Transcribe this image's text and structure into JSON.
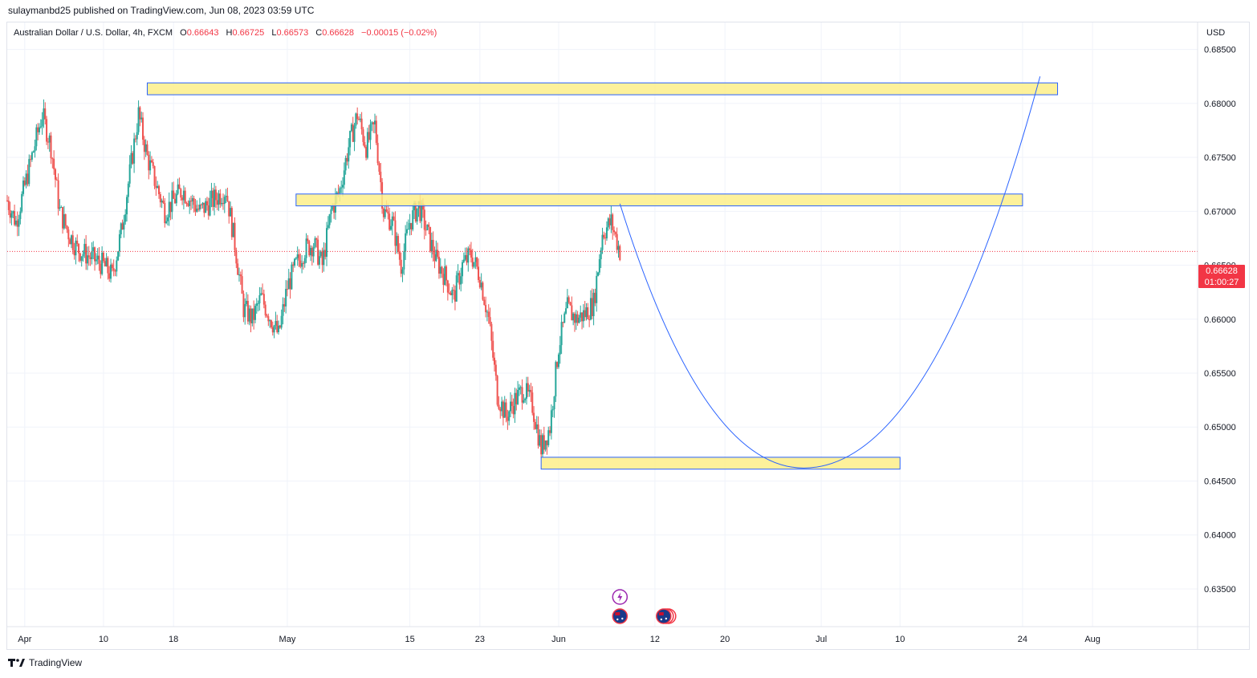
{
  "header": {
    "publisher_line": "sulaymanbd25 published on TradingView.com, Jun 08, 2023 03:59 UTC"
  },
  "legend": {
    "symbol": "Australian Dollar / U.S. Dollar, 4h, FXCM",
    "open_label": "O",
    "open_value": "0.66643",
    "high_label": "H",
    "high_value": "0.66725",
    "low_label": "L",
    "low_value": "0.66573",
    "close_label": "C",
    "close_value": "0.66628",
    "change": "−0.00015 (−0.02%)"
  },
  "price_axis": {
    "currency": "USD",
    "last_price": "0.66628",
    "countdown": "01:00:27"
  },
  "footer": {
    "brand": "TradingView"
  },
  "colors": {
    "up": "#26a69a",
    "down": "#ef5350",
    "zone_fill": "#fdef8a",
    "zone_border": "#2962ff",
    "curve": "#2962ff",
    "price_line": "#f23645",
    "grid": "#f0f3fa"
  },
  "chart_data": {
    "type": "candlestick",
    "interval": "4h",
    "ylim": [
      0.6315,
      0.6875
    ],
    "y_ticks": [
      "0.68500",
      "0.68000",
      "0.67500",
      "0.67000",
      "0.66500",
      "0.66000",
      "0.65500",
      "0.65000",
      "0.64500",
      "0.64000",
      "0.63500"
    ],
    "x_ticks": [
      {
        "label": "Apr",
        "date": "2023-04-01"
      },
      {
        "label": "10",
        "date": "2023-04-10"
      },
      {
        "label": "18",
        "date": "2023-04-18"
      },
      {
        "label": "May",
        "date": "2023-05-01"
      },
      {
        "label": "15",
        "date": "2023-05-15"
      },
      {
        "label": "23",
        "date": "2023-05-23"
      },
      {
        "label": "Jun",
        "date": "2023-06-01"
      },
      {
        "label": "12",
        "date": "2023-06-12"
      },
      {
        "label": "20",
        "date": "2023-06-20"
      },
      {
        "label": "Jul",
        "date": "2023-07-01"
      },
      {
        "label": "10",
        "date": "2023-07-10"
      },
      {
        "label": "24",
        "date": "2023-07-24"
      },
      {
        "label": "Aug",
        "date": "2023-08-01"
      }
    ],
    "closes": [
      {
        "date": "2023-03-30",
        "price": 0.671
      },
      {
        "date": "2023-03-31",
        "price": 0.669
      },
      {
        "date": "2023-04-03",
        "price": 0.679
      },
      {
        "date": "2023-04-04",
        "price": 0.676
      },
      {
        "date": "2023-04-05",
        "price": 0.67
      },
      {
        "date": "2023-04-06",
        "price": 0.668
      },
      {
        "date": "2023-04-07",
        "price": 0.6665
      },
      {
        "date": "2023-04-10",
        "price": 0.665
      },
      {
        "date": "2023-04-11",
        "price": 0.664
      },
      {
        "date": "2023-04-12",
        "price": 0.668
      },
      {
        "date": "2023-04-13",
        "price": 0.6735
      },
      {
        "date": "2023-04-14",
        "price": 0.679
      },
      {
        "date": "2023-04-15",
        "price": 0.675
      },
      {
        "date": "2023-04-17",
        "price": 0.67
      },
      {
        "date": "2023-04-18",
        "price": 0.671
      },
      {
        "date": "2023-04-19",
        "price": 0.672
      },
      {
        "date": "2023-04-20",
        "price": 0.671
      },
      {
        "date": "2023-04-21",
        "price": 0.67
      },
      {
        "date": "2023-04-24",
        "price": 0.672
      },
      {
        "date": "2023-04-25",
        "price": 0.667
      },
      {
        "date": "2023-04-26",
        "price": 0.661
      },
      {
        "date": "2023-04-27",
        "price": 0.66
      },
      {
        "date": "2023-04-28",
        "price": 0.662
      },
      {
        "date": "2023-04-30",
        "price": 0.6585
      },
      {
        "date": "2023-05-01",
        "price": 0.663
      },
      {
        "date": "2023-05-02",
        "price": 0.665
      },
      {
        "date": "2023-05-03",
        "price": 0.6665
      },
      {
        "date": "2023-05-04",
        "price": 0.667
      },
      {
        "date": "2023-05-05",
        "price": 0.665
      },
      {
        "date": "2023-05-06",
        "price": 0.67
      },
      {
        "date": "2023-05-07",
        "price": 0.672
      },
      {
        "date": "2023-05-08",
        "price": 0.676
      },
      {
        "date": "2023-05-09",
        "price": 0.679
      },
      {
        "date": "2023-05-10",
        "price": 0.676
      },
      {
        "date": "2023-05-11",
        "price": 0.678
      },
      {
        "date": "2023-05-12",
        "price": 0.67
      },
      {
        "date": "2023-05-13",
        "price": 0.669
      },
      {
        "date": "2023-05-14",
        "price": 0.665
      },
      {
        "date": "2023-05-15",
        "price": 0.669
      },
      {
        "date": "2023-05-16",
        "price": 0.6705
      },
      {
        "date": "2023-05-17",
        "price": 0.668
      },
      {
        "date": "2023-05-18",
        "price": 0.6655
      },
      {
        "date": "2023-05-19",
        "price": 0.664
      },
      {
        "date": "2023-05-20",
        "price": 0.662
      },
      {
        "date": "2023-05-21",
        "price": 0.665
      },
      {
        "date": "2023-05-22",
        "price": 0.666
      },
      {
        "date": "2023-05-23",
        "price": 0.664
      },
      {
        "date": "2023-05-24",
        "price": 0.66
      },
      {
        "date": "2023-05-25",
        "price": 0.653
      },
      {
        "date": "2023-05-26",
        "price": 0.651
      },
      {
        "date": "2023-05-27",
        "price": 0.6525
      },
      {
        "date": "2023-05-28",
        "price": 0.6535
      },
      {
        "date": "2023-05-29",
        "price": 0.652
      },
      {
        "date": "2023-05-30",
        "price": 0.648
      },
      {
        "date": "2023-05-31",
        "price": 0.65
      },
      {
        "date": "2023-06-01",
        "price": 0.6575
      },
      {
        "date": "2023-06-02",
        "price": 0.661
      },
      {
        "date": "2023-06-03",
        "price": 0.66
      },
      {
        "date": "2023-06-04",
        "price": 0.6605
      },
      {
        "date": "2023-06-05",
        "price": 0.6615
      },
      {
        "date": "2023-06-06",
        "price": 0.668
      },
      {
        "date": "2023-06-07",
        "price": 0.669
      },
      {
        "date": "2023-06-08",
        "price": 0.66628
      }
    ],
    "zones": [
      {
        "from": "2023-04-15",
        "to": "2023-07-28",
        "top": 0.6819,
        "bottom": 0.6808
      },
      {
        "from": "2023-05-02",
        "to": "2023-07-24",
        "top": 0.6716,
        "bottom": 0.6705
      },
      {
        "from": "2023-05-30",
        "to": "2023-07-10",
        "top": 0.6472,
        "bottom": 0.6461
      }
    ],
    "projection_curve": {
      "start": {
        "date": "2023-06-08",
        "price": 0.6707
      },
      "bottom": {
        "date": "2023-06-29",
        "price": 0.6462
      },
      "end": {
        "date": "2023-07-26",
        "price": 0.6825
      }
    },
    "events": [
      {
        "date": "2023-06-08",
        "row": 1,
        "kind": "lightning"
      },
      {
        "date": "2023-06-08",
        "row": 2,
        "kind": "flag-au"
      },
      {
        "date": "2023-06-13",
        "row": 2,
        "kind": "flag-au"
      }
    ]
  }
}
